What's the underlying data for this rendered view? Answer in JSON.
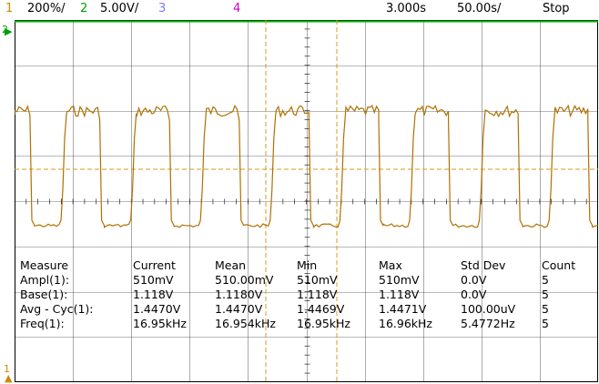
{
  "topbar": {
    "ch1": {
      "num": "1",
      "scale": "200%/",
      "color": "#cc8a00"
    },
    "ch2": {
      "num": "2",
      "scale": "5.00V/",
      "color": "#00a000"
    },
    "ch3": {
      "num": "3",
      "color": "#7a7aff"
    },
    "ch4": {
      "num": "4",
      "color": "#cc00cc"
    },
    "delay": "3.000s",
    "timebase": "50.00s/",
    "run_state": "Stop"
  },
  "colors": {
    "trace": "#b07000",
    "grid": "#000000",
    "ch2_ref": "#00b000",
    "cursor": "#d99a20"
  },
  "markers": {
    "ch2_level": "2",
    "ch1_level": "1"
  },
  "measure": {
    "headers": [
      "Measure",
      "Current",
      "Mean",
      "Min",
      "Max",
      "Std Dev",
      "Count"
    ],
    "rows": [
      {
        "label": "Ampl(1):",
        "values": [
          "510mV",
          "510.00mV",
          "510mV",
          "510mV",
          "0.0V",
          "5"
        ]
      },
      {
        "label": "Base(1):",
        "values": [
          "1.118V",
          "1.1180V",
          "1.118V",
          "1.118V",
          "0.0V",
          "5"
        ]
      },
      {
        "label": "Avg - Cyc(1):",
        "values": [
          "1.4470V",
          "1.4470V",
          "1.4469V",
          "1.4471V",
          "100.00uV",
          "5"
        ]
      },
      {
        "label": "Freq(1):",
        "values": [
          "16.95kHz",
          "16.954kHz",
          "16.95kHz",
          "16.96kHz",
          "5.4772Hz",
          "5"
        ]
      }
    ]
  }
}
